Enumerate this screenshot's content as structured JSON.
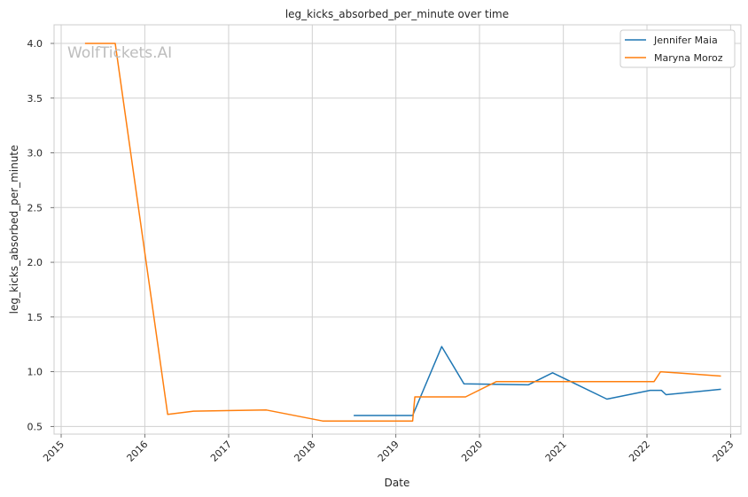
{
  "chart_data": {
    "type": "line",
    "title": "leg_kicks_absorbed_per_minute over time",
    "xlabel": "Date",
    "ylabel": "leg_kicks_absorbed_per_minute",
    "watermark": "WolfTickets.AI",
    "x_ticks": [
      "2015",
      "2016",
      "2017",
      "2018",
      "2019",
      "2020",
      "2021",
      "2022",
      "2023"
    ],
    "y_ticks": [
      "0.5",
      "1.0",
      "1.5",
      "2.0",
      "2.5",
      "3.0",
      "3.5",
      "4.0"
    ],
    "xlim": [
      "2014-12-01",
      "2023-02-15"
    ],
    "ylim": [
      0.43,
      4.17
    ],
    "grid": true,
    "legend_position": "top-right",
    "series": [
      {
        "name": "Jennifer Maia",
        "color": "#1f77b4",
        "points": [
          [
            "2018-07-01",
            0.6
          ],
          [
            "2019-03-15",
            0.6
          ],
          [
            "2019-07-20",
            1.23
          ],
          [
            "2019-10-25",
            0.89
          ],
          [
            "2020-08-01",
            0.88
          ],
          [
            "2020-11-15",
            0.99
          ],
          [
            "2021-07-10",
            0.75
          ],
          [
            "2022-01-15",
            0.83
          ],
          [
            "2022-03-05",
            0.83
          ],
          [
            "2022-03-25",
            0.79
          ],
          [
            "2022-11-20",
            0.84
          ]
        ]
      },
      {
        "name": "Maryna Moroz",
        "color": "#ff7f0e",
        "points": [
          [
            "2015-04-15",
            4.0
          ],
          [
            "2015-08-25",
            4.0
          ],
          [
            "2016-04-10",
            0.61
          ],
          [
            "2016-08-01",
            0.64
          ],
          [
            "2017-06-15",
            0.65
          ],
          [
            "2018-02-15",
            0.55
          ],
          [
            "2019-03-15",
            0.55
          ],
          [
            "2019-03-25",
            0.77
          ],
          [
            "2019-11-01",
            0.77
          ],
          [
            "2020-03-15",
            0.91
          ],
          [
            "2022-02-01",
            0.91
          ],
          [
            "2022-03-01",
            1.0
          ],
          [
            "2022-11-20",
            0.96
          ]
        ]
      }
    ]
  }
}
